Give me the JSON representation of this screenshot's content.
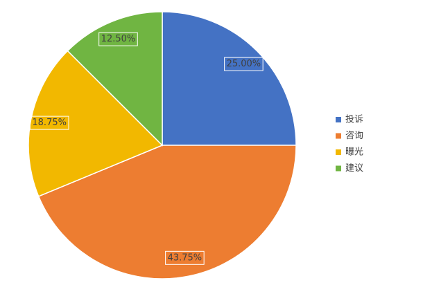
{
  "chart_data": {
    "type": "pie",
    "categories": [
      "投诉",
      "咨询",
      "曝光",
      "建议"
    ],
    "values": [
      25,
      43.75,
      18.75,
      12.5
    ],
    "value_labels": [
      "25.00%",
      "43.75%",
      "18.75%",
      "12.50%"
    ],
    "colors": [
      "#4472c4",
      "#ed7d31",
      "#f2b800",
      "#70b542"
    ],
    "legend": "right"
  }
}
